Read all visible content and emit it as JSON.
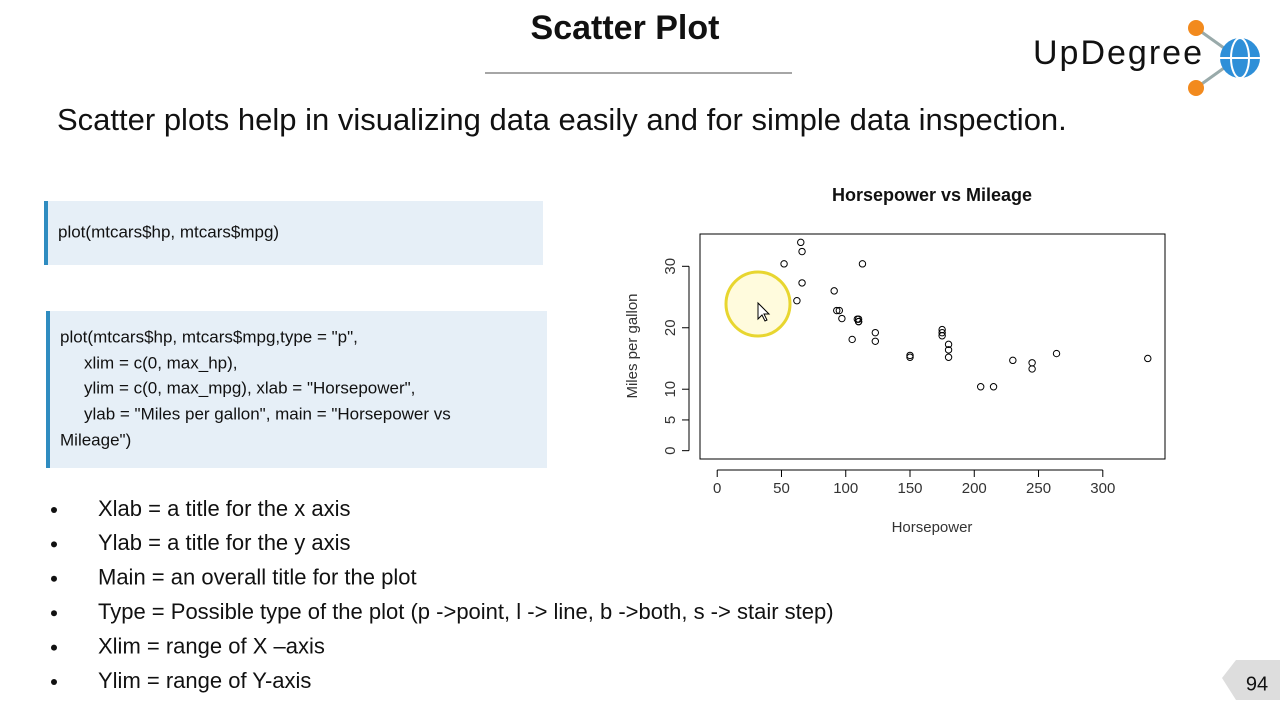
{
  "header": {
    "title": "Scatter Plot",
    "logo": "UpDegree"
  },
  "intro": "Scatter plots help in visualizing data easily and for simple data inspection.",
  "code_blocks": [
    {
      "lines": [
        "plot(mtcars$hp, mtcars$mpg)"
      ]
    },
    {
      "lines": [
        "plot(mtcars$hp, mtcars$mpg,type = \"p\",",
        "xlim = c(0, max_hp),",
        "ylim = c(0, max_mpg), xlab = \"Horsepower\",",
        "ylab = \"Miles per gallon\", main = \"Horsepower vs",
        "Mileage\")"
      ]
    }
  ],
  "bullets": [
    "Xlab = a title for the x axis",
    "Ylab = a title for the y axis",
    "Main = an overall title for the plot",
    "Type = Possible type of the plot (p ->point, l -> line, b ->both, s -> stair step)",
    "Xlim = range of X –axis",
    "Ylim = range of Y-axis"
  ],
  "page_number": "94",
  "chart_data": {
    "type": "scatter",
    "title": "Horsepower vs Mileage",
    "x_label": "Horsepower",
    "y_label": "Miles per gallon",
    "color": "#000000",
    "x": [
      110,
      110,
      93,
      110,
      175,
      105,
      245,
      62,
      95,
      123,
      123,
      180,
      180,
      180,
      205,
      215,
      230,
      66,
      52,
      65,
      97,
      150,
      150,
      245,
      175,
      66,
      91,
      113,
      264,
      175,
      335,
      109
    ],
    "values": [
      21.0,
      21.0,
      22.8,
      21.4,
      18.7,
      18.1,
      14.3,
      24.4,
      22.8,
      19.2,
      17.8,
      16.4,
      17.3,
      15.2,
      10.4,
      10.4,
      14.7,
      32.4,
      30.4,
      33.9,
      21.5,
      15.5,
      15.2,
      13.3,
      19.2,
      27.3,
      26.0,
      30.4,
      15.8,
      19.7,
      15.0,
      21.4
    ],
    "xlim": [
      -13.4,
      348.4
    ],
    "ylim": [
      -1.356,
      35.256
    ],
    "xticks": [
      0,
      50,
      100,
      150,
      200,
      250,
      300
    ],
    "yticks": [
      0,
      5,
      10,
      20,
      30
    ]
  }
}
